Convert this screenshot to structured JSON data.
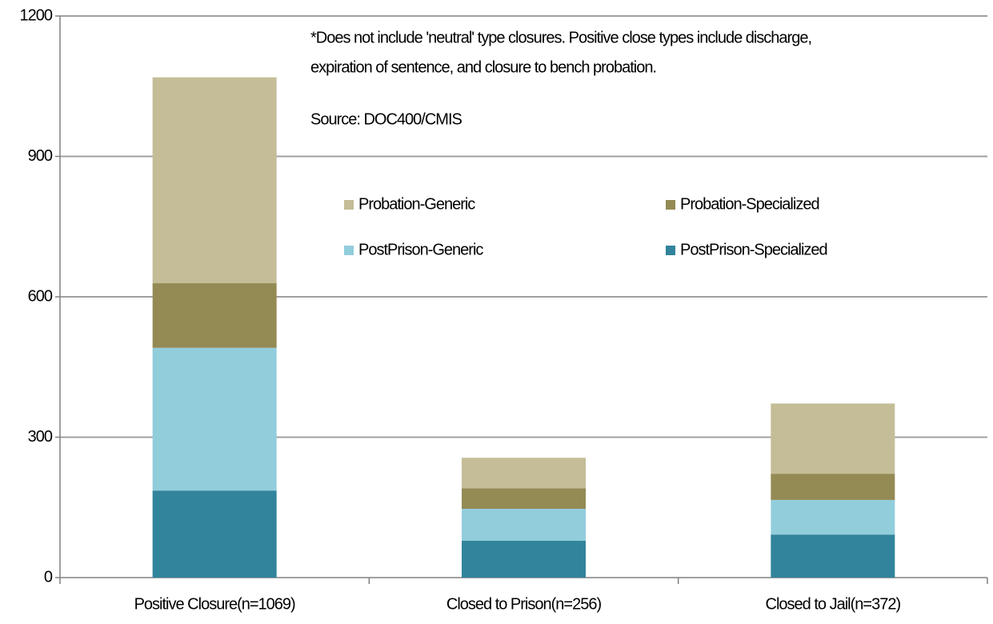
{
  "chart_data": {
    "type": "stacked_bar",
    "categories": [
      "Positive Closure(n=1069)",
      "Closed to Prison(n=256)",
      "Closed to Jail(n=372)"
    ],
    "series": [
      {
        "name": "PostPrison-Specialized",
        "color": "#31849b",
        "values": [
          186,
          79,
          92
        ]
      },
      {
        "name": "PostPrison-Generic",
        "color": "#92cddc",
        "values": [
          305,
          68,
          74
        ]
      },
      {
        "name": "Probation-Specialized",
        "color": "#948a54",
        "values": [
          138,
          44,
          56
        ]
      },
      {
        "name": "Probation-Generic",
        "color": "#c4bd97",
        "values": [
          440,
          65,
          150
        ]
      }
    ],
    "ylim": [
      0,
      1200
    ],
    "yticks": [
      0,
      300,
      600,
      900,
      1200
    ],
    "grid": true,
    "annotations": [
      "*Does not include 'neutral' type closures.  Positive close types include discharge,",
      "expiration of sentence, and closure to bench probation.",
      "Source: DOC400/CMIS"
    ]
  }
}
